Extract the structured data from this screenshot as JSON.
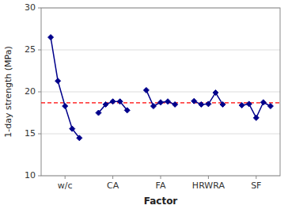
{
  "chart_data": {
    "type": "line",
    "x_label": "Factor",
    "y_label": "1-day strength (MPa)",
    "categories": [
      "w/c",
      "CA",
      "FA",
      "HRWRA",
      "SF"
    ],
    "series": [
      {
        "name": "w/c",
        "color": "#00008B",
        "marker": "diamond",
        "values": [
          26.5,
          21.3,
          18.3,
          15.6,
          14.5
        ]
      },
      {
        "name": "CA",
        "color": "#00008B",
        "marker": "diamond",
        "values": [
          17.5,
          18.5,
          18.85,
          18.85,
          17.8
        ]
      },
      {
        "name": "FA",
        "color": "#00008B",
        "marker": "diamond",
        "values": [
          20.2,
          18.3,
          18.75,
          18.85,
          18.5
        ]
      },
      {
        "name": "HRWRA",
        "color": "#00008B",
        "marker": "diamond",
        "values": [
          18.9,
          18.5,
          18.55,
          19.9,
          18.5
        ]
      },
      {
        "name": "SF",
        "color": "#00008B",
        "marker": "diamond",
        "values": [
          18.4,
          18.55,
          16.9,
          18.75,
          18.3
        ]
      }
    ],
    "reference_lines": [
      {
        "value": 18.7,
        "color": "#FF0000",
        "line_style": "dashed"
      }
    ],
    "ylim": [
      10,
      30
    ],
    "yticks": [
      10,
      15,
      20,
      25,
      30
    ],
    "grid": true
  }
}
